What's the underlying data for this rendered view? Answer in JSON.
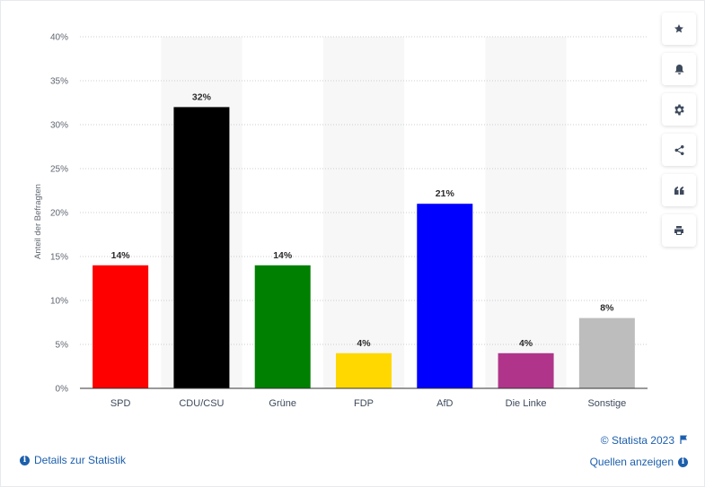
{
  "chart_data": {
    "type": "bar",
    "categories": [
      "SPD",
      "CDU/CSU",
      "Grüne",
      "FDP",
      "AfD",
      "Die Linke",
      "Sonstige"
    ],
    "values": [
      14,
      32,
      14,
      4,
      21,
      4,
      8
    ],
    "data_labels": [
      "14%",
      "32%",
      "14%",
      "4%",
      "21%",
      "4%",
      "8%"
    ],
    "colors": [
      "#ff0000",
      "#000000",
      "#008000",
      "#ffd800",
      "#0000ff",
      "#b0358a",
      "#bdbdbd"
    ],
    "ylabel": "Anteil der Befragten",
    "xlabel": "",
    "title": "",
    "ylim": [
      0,
      40
    ],
    "yticks": [
      0,
      5,
      10,
      15,
      20,
      25,
      30,
      35,
      40
    ],
    "ytick_labels": [
      "0%",
      "5%",
      "10%",
      "15%",
      "20%",
      "25%",
      "30%",
      "35%",
      "40%"
    ],
    "grid": true,
    "legend": "none"
  },
  "sidebar": {
    "buttons": [
      {
        "icon": "star-icon"
      },
      {
        "icon": "bell-icon"
      },
      {
        "icon": "gear-icon"
      },
      {
        "icon": "share-icon"
      },
      {
        "icon": "quote-icon"
      },
      {
        "icon": "print-icon"
      }
    ]
  },
  "footer": {
    "copyright": "© Statista 2023",
    "details_label": "Details zur Statistik",
    "sources_label": "Quellen anzeigen"
  }
}
